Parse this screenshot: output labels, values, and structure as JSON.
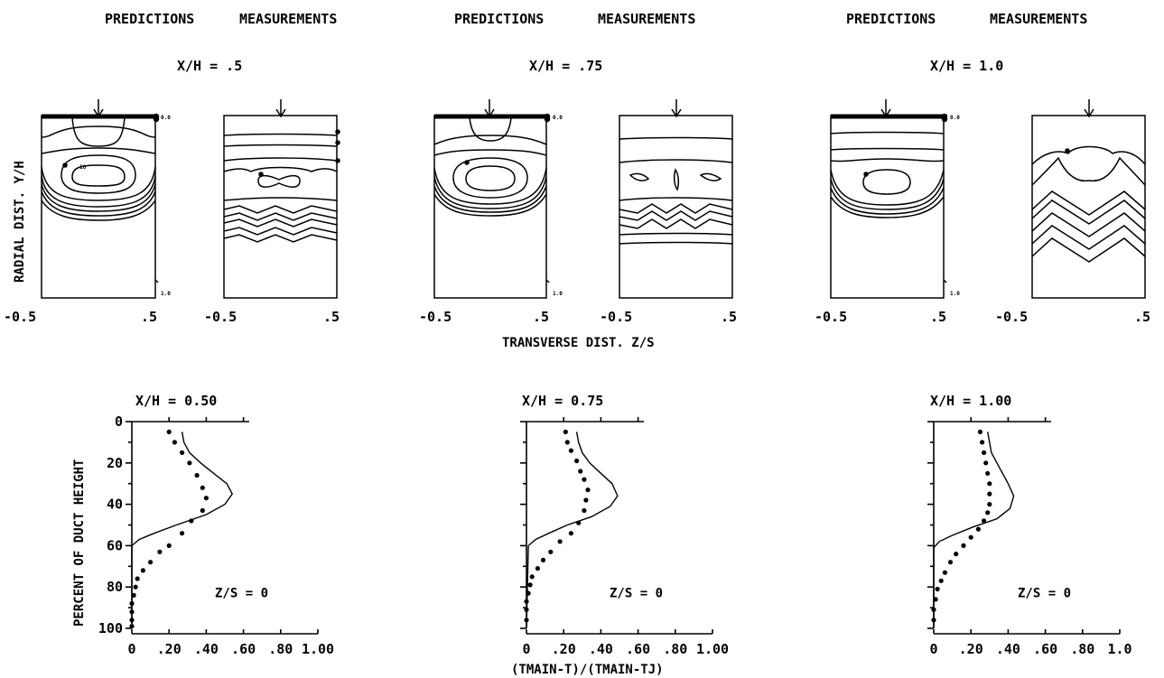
{
  "panels": [
    {
      "left_header": "PREDICTIONS",
      "right_header": "MEASUREMENTS",
      "xh_label": "X/H = .5"
    },
    {
      "left_header": "PREDICTIONS",
      "right_header": "MEASUREMENTS",
      "xh_label": "X/H = .75"
    },
    {
      "left_header": "PREDICTIONS",
      "right_header": "MEASUREMENTS",
      "xh_label": "X/H = 1.0"
    }
  ],
  "contour_axes": {
    "ylabel": "RADIAL DIST. Y/H",
    "xlabel": "TRANSVERSE DIST. Z/S",
    "xtick_left": "-0.5",
    "xtick_right": ".5",
    "top_value_label": "0.0",
    "bottom_value_label": "1.0",
    "contour_label": "10"
  },
  "chart_data": [
    {
      "type": "line",
      "title": "X/H = 0.50",
      "annotation": "Z/S = 0",
      "xlabel": "(TMAIN-T)/(TMAIN-TJ)",
      "ylabel": "PERCENT OF DUCT HEIGHT",
      "xlim": [
        0,
        1.0
      ],
      "ylim": [
        100,
        0
      ],
      "xticks": [
        "0",
        ".20",
        ".40",
        ".60",
        ".80",
        "1.00"
      ],
      "yticks": [
        "0",
        "20",
        "40",
        "60",
        "80",
        "100"
      ],
      "series": [
        {
          "style": "solid",
          "points": [
            [
              0.27,
              5
            ],
            [
              0.28,
              10
            ],
            [
              0.31,
              15
            ],
            [
              0.37,
              20
            ],
            [
              0.44,
              25
            ],
            [
              0.51,
              30
            ],
            [
              0.54,
              35
            ],
            [
              0.5,
              40
            ],
            [
              0.4,
              45
            ],
            [
              0.24,
              50
            ],
            [
              0.12,
              54
            ],
            [
              0.04,
              57
            ],
            [
              0.0,
              60
            ],
            [
              0.0,
              100
            ]
          ]
        },
        {
          "style": "dots",
          "points": [
            [
              0.2,
              5
            ],
            [
              0.23,
              10
            ],
            [
              0.27,
              15
            ],
            [
              0.31,
              20
            ],
            [
              0.35,
              26
            ],
            [
              0.38,
              32
            ],
            [
              0.4,
              37
            ],
            [
              0.38,
              43
            ],
            [
              0.32,
              48
            ],
            [
              0.27,
              54
            ],
            [
              0.2,
              60
            ],
            [
              0.15,
              63
            ],
            [
              0.1,
              68
            ],
            [
              0.06,
              72
            ],
            [
              0.03,
              76
            ],
            [
              0.02,
              80
            ],
            [
              0.01,
              84
            ],
            [
              0.0,
              88
            ],
            [
              0.0,
              92
            ],
            [
              0.0,
              96
            ],
            [
              0.0,
              99
            ]
          ]
        }
      ]
    },
    {
      "type": "line",
      "title": "X/H = 0.75",
      "annotation": "Z/S = 0",
      "xlabel": "(TMAIN-T)/(TMAIN-TJ)",
      "ylabel": "",
      "xlim": [
        0,
        1.0
      ],
      "ylim": [
        100,
        0
      ],
      "xticks": [
        "0",
        ".20",
        ".40",
        ".60",
        ".80",
        "1.00"
      ],
      "yticks": [],
      "series": [
        {
          "style": "solid",
          "points": [
            [
              0.27,
              5
            ],
            [
              0.28,
              10
            ],
            [
              0.3,
              15
            ],
            [
              0.34,
              20
            ],
            [
              0.4,
              25
            ],
            [
              0.46,
              30
            ],
            [
              0.49,
              36
            ],
            [
              0.45,
              41
            ],
            [
              0.35,
              46
            ],
            [
              0.22,
              50
            ],
            [
              0.12,
              54
            ],
            [
              0.05,
              57
            ],
            [
              0.01,
              60
            ],
            [
              0.0,
              100
            ]
          ]
        },
        {
          "style": "dots",
          "points": [
            [
              0.21,
              5
            ],
            [
              0.22,
              10
            ],
            [
              0.24,
              14
            ],
            [
              0.27,
              19
            ],
            [
              0.29,
              24
            ],
            [
              0.31,
              28
            ],
            [
              0.33,
              33
            ],
            [
              0.32,
              38
            ],
            [
              0.31,
              43
            ],
            [
              0.28,
              49
            ],
            [
              0.24,
              54
            ],
            [
              0.18,
              58
            ],
            [
              0.13,
              63
            ],
            [
              0.09,
              67
            ],
            [
              0.06,
              71
            ],
            [
              0.03,
              75
            ],
            [
              0.02,
              79
            ],
            [
              0.01,
              83
            ],
            [
              0.0,
              87
            ],
            [
              0.0,
              91
            ],
            [
              0.0,
              96
            ]
          ]
        }
      ]
    },
    {
      "type": "line",
      "title": "X/H = 1.00",
      "annotation": "Z/S = 0",
      "xlabel": "(TMAIN-T)/(TMAIN-TJ)",
      "ylabel": "",
      "xlim": [
        0,
        1.0
      ],
      "ylim": [
        100,
        0
      ],
      "xticks": [
        "0",
        ".20",
        ".40",
        ".60",
        ".80",
        "1.0"
      ],
      "yticks": [],
      "series": [
        {
          "style": "solid",
          "points": [
            [
              0.29,
              5
            ],
            [
              0.3,
              10
            ],
            [
              0.31,
              15
            ],
            [
              0.34,
              20
            ],
            [
              0.37,
              25
            ],
            [
              0.4,
              30
            ],
            [
              0.43,
              36
            ],
            [
              0.41,
              42
            ],
            [
              0.34,
              47
            ],
            [
              0.21,
              51
            ],
            [
              0.1,
              55
            ],
            [
              0.03,
              58
            ],
            [
              0.0,
              61
            ],
            [
              0.0,
              100
            ]
          ]
        },
        {
          "style": "dots",
          "points": [
            [
              0.25,
              5
            ],
            [
              0.26,
              10
            ],
            [
              0.27,
              15
            ],
            [
              0.28,
              20
            ],
            [
              0.29,
              25
            ],
            [
              0.3,
              30
            ],
            [
              0.3,
              35
            ],
            [
              0.3,
              40
            ],
            [
              0.29,
              44
            ],
            [
              0.27,
              48
            ],
            [
              0.24,
              52
            ],
            [
              0.2,
              56
            ],
            [
              0.16,
              60
            ],
            [
              0.12,
              64
            ],
            [
              0.09,
              68
            ],
            [
              0.06,
              73
            ],
            [
              0.04,
              77
            ],
            [
              0.02,
              81
            ],
            [
              0.01,
              86
            ],
            [
              0.0,
              91
            ],
            [
              0.0,
              96
            ]
          ]
        }
      ]
    }
  ]
}
